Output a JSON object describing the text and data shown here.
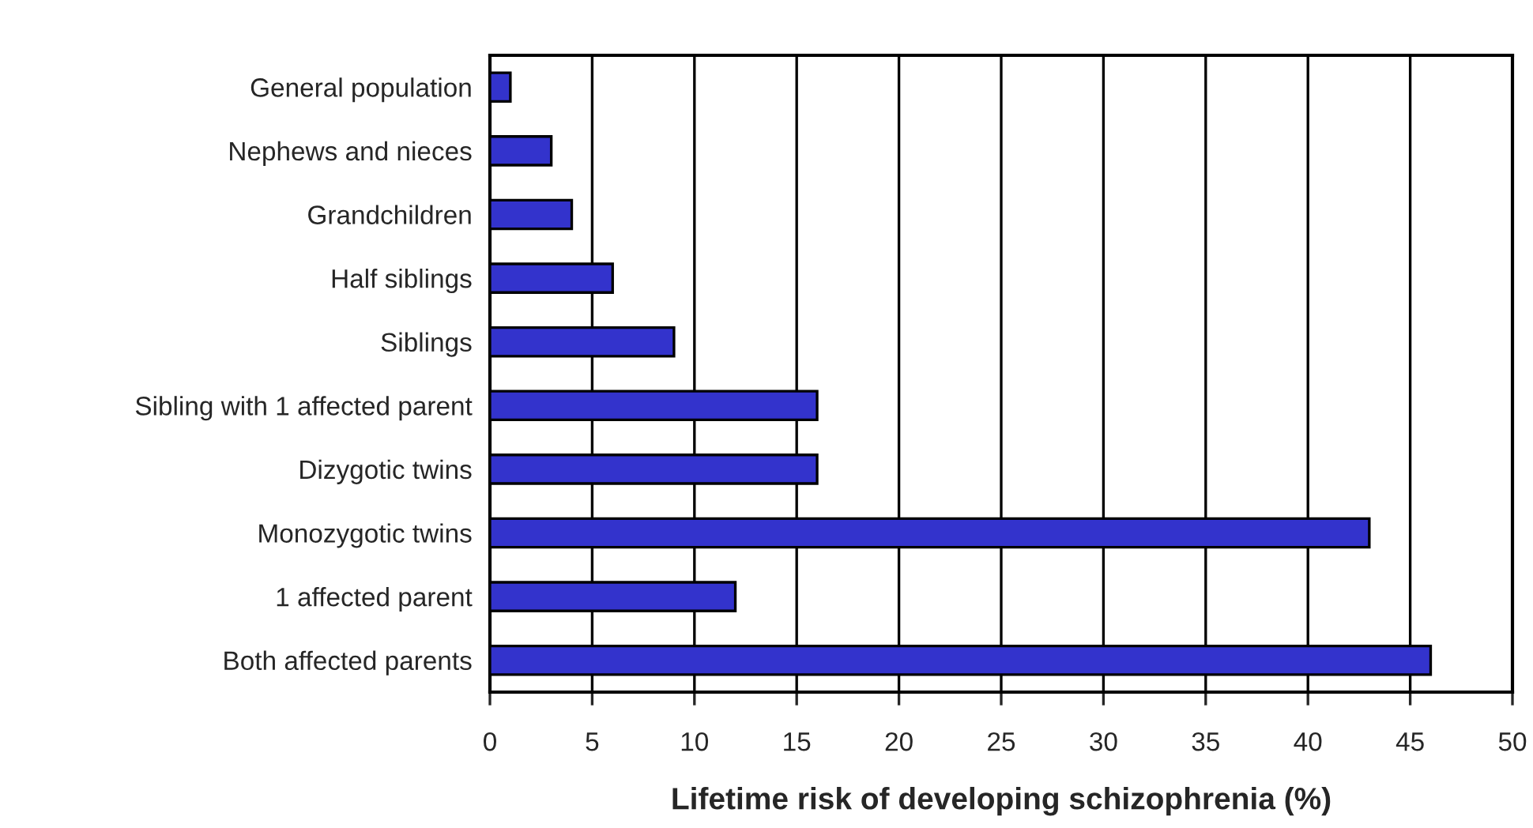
{
  "chart_data": {
    "type": "bar",
    "orientation": "horizontal",
    "xlabel": "Lifetime risk of developing schizophrenia (%)",
    "categories": [
      "General population",
      "Nephews and nieces",
      "Grandchildren",
      "Half siblings",
      "Siblings",
      "Sibling with 1 affected parent",
      "Dizygotic twins",
      "Monozygotic twins",
      "1 affected parent",
      "Both affected parents"
    ],
    "values": [
      1,
      3,
      4,
      6,
      9,
      16,
      16,
      43,
      12,
      46
    ],
    "color": "#3333cc",
    "xlim": [
      0,
      50
    ],
    "xticks": [
      0,
      5,
      10,
      15,
      20,
      25,
      30,
      35,
      40,
      45,
      50
    ],
    "grid": "x"
  }
}
